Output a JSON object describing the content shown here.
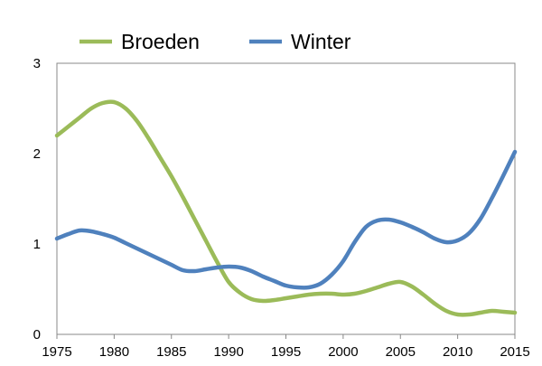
{
  "chart_data": {
    "type": "line",
    "title": "",
    "xlabel": "",
    "ylabel": "",
    "xlim": [
      1975,
      2015
    ],
    "ylim": [
      0,
      3
    ],
    "x_ticks": [
      1975,
      1980,
      1985,
      1990,
      1995,
      2000,
      2005,
      2010,
      2015
    ],
    "y_ticks": [
      0,
      1,
      2,
      3
    ],
    "grid": false,
    "legend": "top",
    "series": [
      {
        "name": "Broeden",
        "color": "#9bbb59",
        "x": [
          1975,
          1976,
          1977,
          1978,
          1979,
          1980,
          1981,
          1982,
          1983,
          1984,
          1985,
          1986,
          1987,
          1988,
          1989,
          1990,
          1991,
          1992,
          1993,
          1994,
          1995,
          1996,
          1997,
          1998,
          1999,
          2000,
          2001,
          2002,
          2003,
          2004,
          2005,
          2006,
          2007,
          2008,
          2009,
          2010,
          2011,
          2012,
          2013,
          2014,
          2015
        ],
        "values": [
          2.2,
          2.3,
          2.4,
          2.5,
          2.56,
          2.57,
          2.5,
          2.36,
          2.17,
          1.96,
          1.75,
          1.52,
          1.28,
          1.04,
          0.8,
          0.58,
          0.46,
          0.39,
          0.37,
          0.38,
          0.4,
          0.42,
          0.44,
          0.45,
          0.45,
          0.44,
          0.45,
          0.48,
          0.52,
          0.56,
          0.58,
          0.53,
          0.44,
          0.34,
          0.26,
          0.22,
          0.22,
          0.24,
          0.26,
          0.25,
          0.24
        ]
      },
      {
        "name": "Winter",
        "color": "#4f81bd",
        "x": [
          1975,
          1976,
          1977,
          1978,
          1979,
          1980,
          1981,
          1982,
          1983,
          1984,
          1985,
          1986,
          1987,
          1988,
          1989,
          1990,
          1991,
          1992,
          1993,
          1994,
          1995,
          1996,
          1997,
          1998,
          1999,
          2000,
          2001,
          2002,
          2003,
          2004,
          2005,
          2006,
          2007,
          2008,
          2009,
          2010,
          2011,
          2012,
          2013,
          2014,
          2015
        ],
        "values": [
          1.06,
          1.11,
          1.15,
          1.14,
          1.11,
          1.07,
          1.01,
          0.95,
          0.89,
          0.83,
          0.77,
          0.71,
          0.7,
          0.72,
          0.74,
          0.75,
          0.74,
          0.7,
          0.64,
          0.59,
          0.54,
          0.52,
          0.52,
          0.56,
          0.66,
          0.81,
          1.02,
          1.19,
          1.26,
          1.27,
          1.24,
          1.19,
          1.13,
          1.06,
          1.02,
          1.04,
          1.12,
          1.28,
          1.51,
          1.76,
          2.02
        ]
      }
    ]
  }
}
